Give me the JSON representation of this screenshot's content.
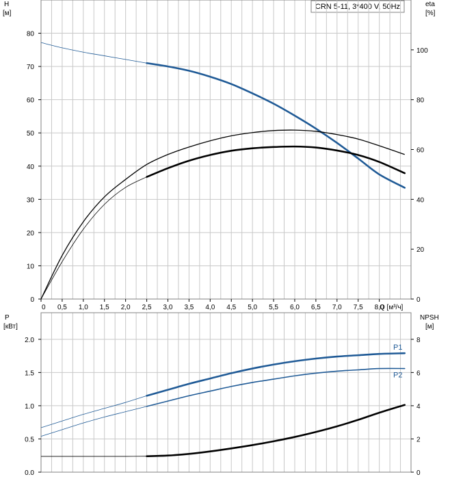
{
  "pump_label": "CRN 5-11, 3*400 V, 50Hz",
  "colors": {
    "blue": "#1f5a96",
    "black": "#000000",
    "grid": "#c8c8c8",
    "frame": "#808080"
  },
  "top_panel": {
    "left_axis": {
      "label_line1": "H",
      "label_line2": "[м]"
    },
    "right_axis": {
      "label_line1": "eta",
      "label_line2": "[%]"
    },
    "x_axis": {
      "label": "Q [м³/ч]"
    }
  },
  "bottom_panel": {
    "left_axis": {
      "label_line1": "P",
      "label_line2": "[кВт]"
    },
    "right_axis": {
      "label_line1": "NPSH",
      "label_line2": "[м]"
    }
  },
  "chart_data": [
    {
      "type": "line",
      "panel": "top",
      "xlabel": "Q [м³/ч]",
      "ylabel": "H [м]",
      "y2label": "eta [%]",
      "xlim": [
        0,
        8.75
      ],
      "ylim": [
        0,
        90
      ],
      "y2lim": [
        0,
        120
      ],
      "x_ticks": [
        "0",
        "0,5",
        "1,0",
        "1,5",
        "2,0",
        "2,5",
        "3,0",
        "3,5",
        "4,0",
        "4,5",
        "5,0",
        "5,5",
        "6,0",
        "6,5",
        "7,0",
        "7,5",
        "8,0"
      ],
      "y_ticks": [
        "0",
        "10",
        "20",
        "30",
        "40",
        "50",
        "60",
        "70",
        "80"
      ],
      "y2_ticks": [
        "0",
        "20",
        "40",
        "60",
        "80",
        "100"
      ],
      "grid": true,
      "series": [
        {
          "axis": "left",
          "color": "blue",
          "thin": {
            "x": [
              0,
              0.5,
              1.0,
              1.5,
              2.0,
              2.5
            ],
            "y": [
              77.2,
              75.6,
              74.3,
              73.2,
              72.1,
              71.0
            ]
          },
          "thick": {
            "x": [
              2.5,
              3.0,
              3.5,
              4.0,
              4.5,
              5.0,
              5.5,
              6.0,
              6.5,
              7.0,
              7.5,
              8.0,
              8.6
            ],
            "y": [
              71.0,
              70.0,
              68.7,
              66.9,
              64.7,
              61.9,
              58.8,
              55.2,
              51.3,
              47.0,
              42.3,
              37.5,
              33.5
            ]
          }
        },
        {
          "axis": "right",
          "color": "black",
          "thin": {
            "x": [
              0,
              0.5,
              1.0,
              1.5,
              2.0,
              2.5
            ],
            "y": [
              0,
              15.0,
              28.0,
              38.0,
              44.8,
              49.0
            ]
          },
          "thick": {
            "x": [
              2.5,
              3.0,
              3.5,
              4.0,
              4.5,
              5.0,
              5.5,
              6.0,
              6.5,
              7.0,
              7.5,
              8.0,
              8.6
            ],
            "y": [
              49.0,
              52.5,
              55.5,
              57.8,
              59.5,
              60.5,
              61.0,
              61.2,
              60.8,
              59.6,
              57.8,
              55.0,
              50.5
            ]
          }
        },
        {
          "axis": "right",
          "color": "black",
          "line": "thin",
          "thin": {
            "x": [
              0,
              0.5,
              1.0,
              1.5,
              2.0,
              2.5,
              3.0,
              3.5,
              4.0,
              4.5,
              5.0,
              5.5,
              6.0,
              6.5,
              7.0,
              7.5,
              8.0,
              8.6
            ],
            "y": [
              0,
              17.5,
              31.0,
              41.0,
              48.0,
              54.0,
              58.0,
              61.0,
              63.5,
              65.5,
              66.8,
              67.6,
              67.8,
              67.3,
              66.0,
              64.2,
              61.5,
              58.0
            ]
          }
        }
      ]
    },
    {
      "type": "line",
      "panel": "bottom",
      "xlabel": "Q [м³/ч]",
      "ylabel": "P [кВт]",
      "y2label": "NPSH [м]",
      "xlim": [
        0,
        8.75
      ],
      "ylim": [
        0,
        2.4
      ],
      "y2lim": [
        0,
        9.6
      ],
      "y_ticks": [
        "0.0",
        "0.5",
        "1.0",
        "1.5",
        "2.0"
      ],
      "y2_ticks": [
        "0",
        "2",
        "4",
        "6",
        "8"
      ],
      "grid": true,
      "series": [
        {
          "name": "P1",
          "axis": "left",
          "color": "blue",
          "thin": {
            "x": [
              0,
              0.5,
              1.0,
              1.5,
              2.0,
              2.5
            ],
            "y": [
              0.67,
              0.77,
              0.87,
              0.96,
              1.05,
              1.15
            ]
          },
          "thick": {
            "x": [
              2.5,
              3.0,
              3.5,
              4.0,
              4.5,
              5.0,
              5.5,
              6.0,
              6.5,
              7.0,
              7.5,
              8.0,
              8.6
            ],
            "y": [
              1.15,
              1.24,
              1.33,
              1.41,
              1.49,
              1.56,
              1.62,
              1.67,
              1.71,
              1.74,
              1.76,
              1.78,
              1.79
            ]
          }
        },
        {
          "name": "P2",
          "axis": "left",
          "color": "blue",
          "thin": {
            "x": [
              0,
              0.5,
              1.0,
              1.5,
              2.0,
              2.5
            ],
            "y": [
              0.54,
              0.64,
              0.74,
              0.83,
              0.91,
              0.99
            ]
          },
          "thick": {
            "x": [
              2.5,
              3.0,
              3.5,
              4.0,
              4.5,
              5.0,
              5.5,
              6.0,
              6.5,
              7.0,
              7.5,
              8.0,
              8.6
            ],
            "y": [
              0.99,
              1.07,
              1.15,
              1.22,
              1.29,
              1.35,
              1.4,
              1.45,
              1.49,
              1.52,
              1.54,
              1.56,
              1.56
            ]
          },
          "thick_width": 1.6
        },
        {
          "axis": "right",
          "color": "black",
          "thin": {
            "x": [
              0,
              0.5,
              1.0,
              1.5,
              2.0,
              2.5
            ],
            "y": [
              0.95,
              0.95,
              0.95,
              0.95,
              0.95,
              0.96
            ]
          },
          "thick": {
            "x": [
              2.5,
              3.0,
              3.5,
              4.0,
              4.5,
              5.0,
              5.5,
              6.0,
              6.5,
              7.0,
              7.5,
              8.0,
              8.6
            ],
            "y": [
              0.96,
              1.0,
              1.1,
              1.25,
              1.43,
              1.63,
              1.86,
              2.12,
              2.42,
              2.76,
              3.15,
              3.58,
              4.05
            ]
          }
        }
      ]
    }
  ]
}
